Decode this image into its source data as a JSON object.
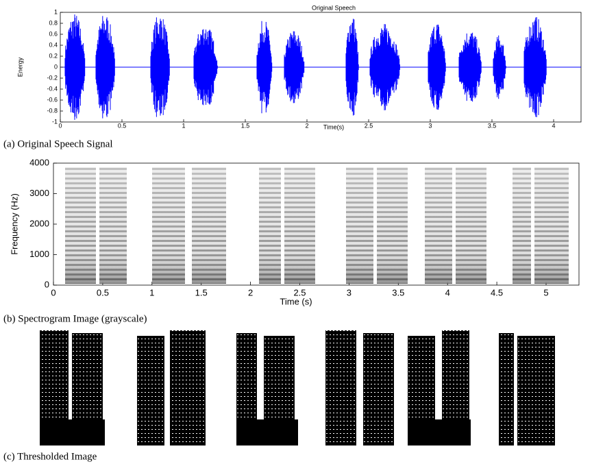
{
  "panels": [
    {
      "title": "Original Speech",
      "y_label": "Energy",
      "x_label": "Time(s)",
      "y_ticks": [
        "1",
        "0.8",
        "0.6",
        "0.4",
        "0.2",
        "0",
        "-0.2",
        "-0.4",
        "-0.6",
        "-0.8",
        "-1"
      ],
      "x_ticks": [
        "0",
        "0.5",
        "1",
        "1.5",
        "2",
        "2.5",
        "3",
        "3.5",
        "4"
      ],
      "caption": "(a) Original Speech Signal"
    },
    {
      "y_label": "Frequency (Hz)",
      "x_label": "Time (s)",
      "y_ticks": [
        "0",
        "1000",
        "2000",
        "3000",
        "4000"
      ],
      "x_ticks": [
        "0",
        "0.5",
        "1",
        "1.5",
        "2",
        "2.5",
        "3",
        "3.5",
        "4",
        "4.5",
        "5"
      ],
      "caption": "(b) Spectrogram Image (grayscale)"
    },
    {
      "caption": "(c) Thresholded Image"
    }
  ]
}
